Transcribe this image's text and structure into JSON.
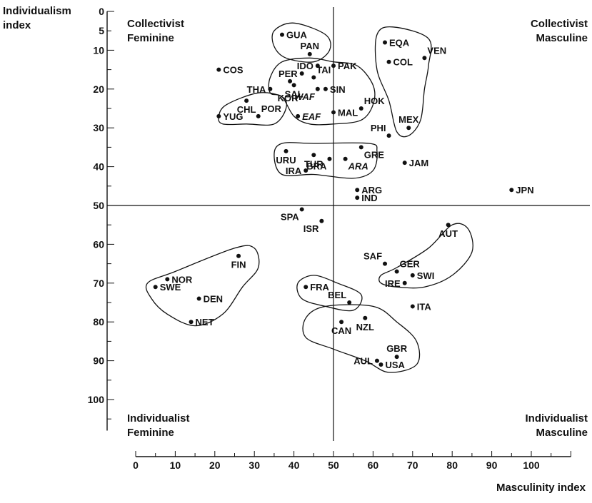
{
  "chart_data": {
    "type": "scatter",
    "xlabel": "Masculinity index",
    "ylabel_line1": "Individualism",
    "ylabel_line2": "index",
    "xlim": [
      0,
      110
    ],
    "ylim": [
      0,
      108
    ],
    "y_inverted": true,
    "x_ticks": [
      0,
      10,
      20,
      30,
      40,
      50,
      60,
      70,
      80,
      90,
      100
    ],
    "y_ticks": [
      0,
      5,
      10,
      20,
      30,
      40,
      50,
      60,
      70,
      80,
      90,
      100
    ],
    "x_tick_labels": [
      "0",
      "10",
      "20",
      "30",
      "40",
      "50",
      "60",
      "70",
      "80",
      "90",
      "100"
    ],
    "y_tick_labels": [
      "0",
      "5",
      "10",
      "20",
      "30",
      "40",
      "50",
      "60",
      "70",
      "80",
      "90",
      "100"
    ],
    "divider_x": 50,
    "divider_y": 50,
    "grid": false,
    "quadrants": {
      "top_left_line1": "Collectivist",
      "top_left_line2": "Feminine",
      "top_right_line1": "Collectivist",
      "top_right_line2": "Masculine",
      "bottom_left_line1": "Individualist",
      "bottom_left_line2": "Feminine",
      "bottom_right_line1": "Individualist",
      "bottom_right_line2": "Masculine"
    },
    "points": [
      {
        "label": "GUA",
        "x": 37,
        "y": 6,
        "label_side": "right",
        "italic": false
      },
      {
        "label": "PAN",
        "x": 44,
        "y": 11,
        "label_side": "above",
        "italic": false
      },
      {
        "label": "EQA",
        "x": 63,
        "y": 8,
        "label_side": "right",
        "italic": false
      },
      {
        "label": "VEN",
        "x": 73,
        "y": 12,
        "label_side": "aboveright",
        "italic": false
      },
      {
        "label": "COL",
        "x": 64,
        "y": 13,
        "label_side": "right",
        "italic": false
      },
      {
        "label": "COS",
        "x": 21,
        "y": 15,
        "label_side": "right",
        "italic": false
      },
      {
        "label": "IDO",
        "x": 46,
        "y": 14,
        "label_side": "left",
        "italic": false
      },
      {
        "label": "PAK",
        "x": 50,
        "y": 14,
        "label_side": "right",
        "italic": false
      },
      {
        "label": "PER",
        "x": 42,
        "y": 16,
        "label_side": "left",
        "italic": false
      },
      {
        "label": "TAI",
        "x": 45,
        "y": 17,
        "label_side": "aboveright",
        "italic": false
      },
      {
        "label": "THA",
        "x": 34,
        "y": 20,
        "label_side": "left",
        "italic": false
      },
      {
        "label": "SAL",
        "x": 40,
        "y": 19,
        "label_side": "below",
        "italic": false
      },
      {
        "label": "SIN",
        "x": 48,
        "y": 20,
        "label_side": "right",
        "italic": false
      },
      {
        "label": "WAF",
        "x": 46,
        "y": 20,
        "label_side": "belowleft",
        "italic": true
      },
      {
        "label": "HOK",
        "x": 57,
        "y": 25,
        "label_side": "aboveright",
        "italic": false
      },
      {
        "label": "CHL",
        "x": 28,
        "y": 23,
        "label_side": "below",
        "italic": false
      },
      {
        "label": "POR",
        "x": 31,
        "y": 27,
        "label_side": "aboveright",
        "italic": false
      },
      {
        "label": "KOR",
        "x": 39,
        "y": 18,
        "label_side": "belowfar",
        "italic": false
      },
      {
        "label": "YUG",
        "x": 21,
        "y": 27,
        "label_side": "right",
        "italic": false
      },
      {
        "label": "EAF",
        "x": 41,
        "y": 27,
        "label_side": "right",
        "italic": true
      },
      {
        "label": "MAL",
        "x": 50,
        "y": 26,
        "label_side": "right",
        "italic": false
      },
      {
        "label": "MEX",
        "x": 69,
        "y": 30,
        "label_side": "above",
        "italic": false
      },
      {
        "label": "PHI",
        "x": 64,
        "y": 32,
        "label_side": "aboveleft",
        "italic": false
      },
      {
        "label": "URU",
        "x": 38,
        "y": 36,
        "label_side": "below",
        "italic": false
      },
      {
        "label": "TUR",
        "x": 45,
        "y": 37,
        "label_side": "below",
        "italic": false
      },
      {
        "label": "GRE",
        "x": 57,
        "y": 35,
        "label_side": "belowright",
        "italic": false
      },
      {
        "label": "JAM",
        "x": 68,
        "y": 39,
        "label_side": "right",
        "italic": false
      },
      {
        "label": "IRA",
        "x": 43,
        "y": 41,
        "label_side": "left",
        "italic": false
      },
      {
        "label": "BRA",
        "x": 49,
        "y": 38,
        "label_side": "belowleft",
        "italic": false
      },
      {
        "label": "ARA",
        "x": 53,
        "y": 38,
        "label_side": "belowright",
        "italic": true
      },
      {
        "label": "ARG",
        "x": 56,
        "y": 46,
        "label_side": "right",
        "italic": false
      },
      {
        "label": "JPN",
        "x": 95,
        "y": 46,
        "label_side": "right",
        "italic": false
      },
      {
        "label": "IND",
        "x": 56,
        "y": 48,
        "label_side": "right",
        "italic": false
      },
      {
        "label": "SPA",
        "x": 42,
        "y": 51,
        "label_side": "belowleft",
        "italic": false
      },
      {
        "label": "ISR",
        "x": 47,
        "y": 54,
        "label_side": "belowleft",
        "italic": false
      },
      {
        "label": "AUT",
        "x": 79,
        "y": 55,
        "label_side": "below",
        "italic": false
      },
      {
        "label": "FIN",
        "x": 26,
        "y": 63,
        "label_side": "below",
        "italic": false
      },
      {
        "label": "SAF",
        "x": 63,
        "y": 65,
        "label_side": "aboveleft",
        "italic": false
      },
      {
        "label": "GER",
        "x": 66,
        "y": 67,
        "label_side": "aboveright",
        "italic": false
      },
      {
        "label": "NOR",
        "x": 8,
        "y": 69,
        "label_side": "right",
        "italic": false
      },
      {
        "label": "SWI",
        "x": 70,
        "y": 68,
        "label_side": "right",
        "italic": false
      },
      {
        "label": "IRE",
        "x": 68,
        "y": 70,
        "label_side": "left",
        "italic": false
      },
      {
        "label": "SWE",
        "x": 5,
        "y": 71,
        "label_side": "right",
        "italic": false
      },
      {
        "label": "FRA",
        "x": 43,
        "y": 71,
        "label_side": "right",
        "italic": false
      },
      {
        "label": "DEN",
        "x": 16,
        "y": 74,
        "label_side": "right",
        "italic": false
      },
      {
        "label": "BEL",
        "x": 54,
        "y": 75,
        "label_side": "aboveleft",
        "italic": false
      },
      {
        "label": "ITA",
        "x": 70,
        "y": 76,
        "label_side": "right",
        "italic": false
      },
      {
        "label": "NET",
        "x": 14,
        "y": 80,
        "label_side": "right",
        "italic": false
      },
      {
        "label": "CAN",
        "x": 52,
        "y": 80,
        "label_side": "below",
        "italic": false
      },
      {
        "label": "NZL",
        "x": 58,
        "y": 79,
        "label_side": "below",
        "italic": false
      },
      {
        "label": "AUL",
        "x": 61,
        "y": 90,
        "label_side": "left",
        "italic": false
      },
      {
        "label": "GBR",
        "x": 66,
        "y": 89,
        "label_side": "above",
        "italic": false
      },
      {
        "label": "USA",
        "x": 62,
        "y": 91,
        "label_side": "right",
        "italic": false
      }
    ],
    "clusters": [
      {
        "name": "cluster-gua-pan",
        "outline": [
          [
            35,
            5
          ],
          [
            40,
            3
          ],
          [
            48,
            6
          ],
          [
            49,
            10
          ],
          [
            45,
            13
          ],
          [
            38,
            12
          ],
          [
            35,
            9
          ]
        ]
      },
      {
        "name": "cluster-central-asia",
        "outline": [
          [
            34,
            17
          ],
          [
            37,
            13
          ],
          [
            44,
            12
          ],
          [
            50,
            13
          ],
          [
            56,
            14
          ],
          [
            60,
            19
          ],
          [
            60,
            24
          ],
          [
            57,
            28
          ],
          [
            50,
            29
          ],
          [
            44,
            29
          ],
          [
            40,
            27
          ],
          [
            37,
            22
          ],
          [
            34,
            21
          ]
        ]
      },
      {
        "name": "cluster-latin-north",
        "outline": [
          [
            61,
            6
          ],
          [
            65,
            4
          ],
          [
            74,
            7
          ],
          [
            74,
            14
          ],
          [
            73,
            20
          ],
          [
            72,
            28
          ],
          [
            69,
            32
          ],
          [
            66,
            31
          ],
          [
            64,
            23
          ],
          [
            61,
            15
          ]
        ]
      },
      {
        "name": "cluster-chl-por",
        "outline": [
          [
            21,
            27
          ],
          [
            23,
            24
          ],
          [
            31,
            21
          ],
          [
            37,
            22
          ],
          [
            38,
            25
          ],
          [
            35,
            29
          ],
          [
            28,
            29
          ],
          [
            22,
            29
          ]
        ]
      },
      {
        "name": "cluster-mediterranean",
        "outline": [
          [
            35,
            37
          ],
          [
            37,
            34
          ],
          [
            45,
            34
          ],
          [
            59,
            34
          ],
          [
            61,
            36
          ],
          [
            60,
            41
          ],
          [
            55,
            43
          ],
          [
            45,
            42
          ],
          [
            37,
            42
          ]
        ]
      },
      {
        "name": "cluster-nordic",
        "outline": [
          [
            3,
            70
          ],
          [
            10,
            67
          ],
          [
            25,
            61
          ],
          [
            30,
            61
          ],
          [
            31,
            66
          ],
          [
            27,
            71
          ],
          [
            22,
            78
          ],
          [
            15,
            81
          ],
          [
            8,
            78
          ],
          [
            4,
            74
          ]
        ]
      },
      {
        "name": "cluster-germanic",
        "outline": [
          [
            62,
            68
          ],
          [
            66,
            66
          ],
          [
            74,
            61
          ],
          [
            80,
            55
          ],
          [
            84,
            56
          ],
          [
            85,
            62
          ],
          [
            80,
            68
          ],
          [
            73,
            71
          ],
          [
            66,
            71
          ],
          [
            62,
            70
          ]
        ]
      },
      {
        "name": "cluster-fra-bel",
        "outline": [
          [
            41,
            70
          ],
          [
            45,
            68
          ],
          [
            51,
            70
          ],
          [
            57,
            73
          ],
          [
            55,
            77
          ],
          [
            48,
            76
          ],
          [
            42,
            74
          ]
        ]
      },
      {
        "name": "cluster-anglo",
        "outline": [
          [
            43,
            79
          ],
          [
            48,
            76
          ],
          [
            60,
            76
          ],
          [
            66,
            80
          ],
          [
            71,
            85
          ],
          [
            71,
            91
          ],
          [
            64,
            93
          ],
          [
            58,
            90
          ],
          [
            50,
            87
          ],
          [
            43,
            84
          ]
        ]
      }
    ]
  }
}
